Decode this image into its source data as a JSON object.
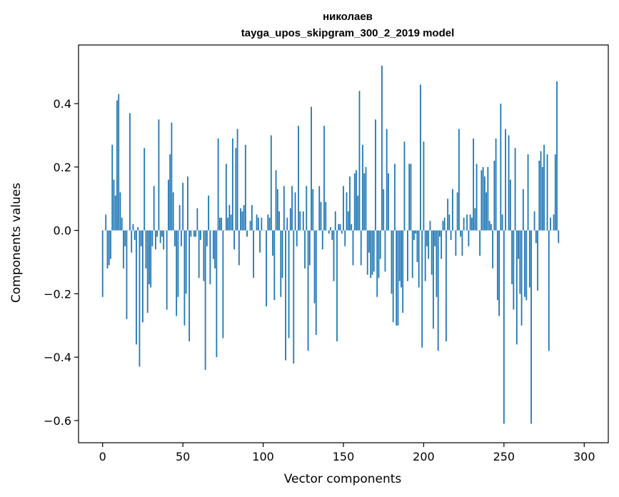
{
  "chart_data": {
    "type": "bar",
    "title": "николаев",
    "subtitle": "tayga_upos_skipgram_300_2_2019 model",
    "xlabel": "Vector components",
    "ylabel": "Components values",
    "xlim": [
      -15,
      315
    ],
    "ylim": [
      -0.67,
      0.585
    ],
    "xticks": [
      0,
      50,
      100,
      150,
      200,
      250,
      300
    ],
    "yticks": [
      -0.6,
      -0.4,
      -0.2,
      0.0,
      0.2,
      0.4
    ],
    "ytick_labels": [
      "−0.6",
      "−0.4",
      "−0.2",
      "0.0",
      "0.2",
      "0.4"
    ],
    "xtick_labels": [
      "0",
      "50",
      "100",
      "150",
      "200",
      "250",
      "300"
    ],
    "grid": false,
    "bar_color": "#1f77b4",
    "values": [
      -0.21,
      0.0,
      0.05,
      -0.12,
      -0.11,
      -0.09,
      0.27,
      0.16,
      0.11,
      0.41,
      0.43,
      0.12,
      0.04,
      -0.12,
      -0.05,
      -0.28,
      0.0,
      0.37,
      -0.07,
      0.02,
      -0.03,
      -0.36,
      0.01,
      -0.43,
      -0.05,
      -0.29,
      0.26,
      -0.12,
      -0.26,
      -0.17,
      -0.18,
      -0.05,
      0.14,
      -0.06,
      -0.02,
      0.35,
      -0.04,
      -0.02,
      -0.06,
      0.0,
      -0.25,
      0.16,
      0.24,
      0.34,
      0.12,
      -0.05,
      -0.27,
      -0.21,
      0.08,
      -0.05,
      0.15,
      -0.3,
      -0.2,
      0.17,
      -0.35,
      -0.02,
      0.0,
      -0.02,
      -0.02,
      0.07,
      -0.15,
      -0.03,
      0.0,
      -0.16,
      -0.44,
      -0.05,
      0.11,
      -0.17,
      0.0,
      -0.09,
      -0.12,
      -0.4,
      0.29,
      0.04,
      0.04,
      -0.34,
      0.0,
      0.21,
      0.04,
      0.08,
      0.05,
      0.29,
      -0.06,
      0.26,
      0.32,
      -0.11,
      0.07,
      0.06,
      0.08,
      0.27,
      -0.02,
      0.0,
      0.03,
      0.08,
      -0.15,
      0.0,
      0.05,
      0.04,
      -0.07,
      0.04,
      0.0,
      0.0,
      -0.24,
      0.05,
      0.04,
      0.3,
      -0.08,
      -0.22,
      0.19,
      0.13,
      0.06,
      -0.21,
      -0.15,
      0.14,
      -0.41,
      0.04,
      -0.34,
      0.07,
      0.14,
      -0.42,
      0.12,
      -0.05,
      0.33,
      0.06,
      0.0,
      0.06,
      -0.12,
      0.14,
      -0.38,
      -0.11,
      0.39,
      0.13,
      -0.23,
      -0.33,
      0.0,
      0.14,
      0.09,
      -0.06,
      0.33,
      0.09,
      0.0,
      -0.01,
      0.01,
      -0.03,
      -0.16,
      0.06,
      -0.35,
      0.02,
      0.02,
      -0.01,
      0.14,
      -0.05,
      0.12,
      0.06,
      0.17,
      0.02,
      -0.11,
      0.18,
      0.19,
      0.11,
      0.44,
      -0.11,
      0.27,
      0.18,
      0.2,
      -0.14,
      -0.07,
      -0.15,
      -0.14,
      -0.13,
      0.35,
      -0.21,
      -0.15,
      -0.09,
      0.52,
      0.13,
      -0.13,
      0.32,
      0.18,
      0.0,
      -0.2,
      -0.29,
      0.21,
      -0.3,
      -0.3,
      -0.16,
      -0.18,
      -0.26,
      0.28,
      0.0,
      -0.16,
      0.21,
      0.21,
      -0.15,
      -0.03,
      -0.01,
      -0.1,
      -0.18,
      0.46,
      -0.37,
      0.28,
      -0.16,
      -0.05,
      -0.09,
      0.03,
      -0.14,
      -0.31,
      -0.05,
      -0.21,
      -0.38,
      -0.02,
      -0.09,
      0.03,
      0.04,
      -0.35,
      0.1,
      0.05,
      -0.03,
      0.13,
      0.0,
      -0.08,
      0.12,
      0.32,
      -0.02,
      -0.08,
      0.04,
      0.0,
      0.05,
      -0.05,
      0.05,
      0.04,
      0.29,
      0.07,
      0.21,
      0.0,
      -0.08,
      0.19,
      0.2,
      0.17,
      0.12,
      0.2,
      0.03,
      0.02,
      -0.12,
      0.22,
      0.29,
      -0.22,
      -0.27,
      0.4,
      0.05,
      -0.61,
      0.32,
      0.0,
      0.3,
      0.16,
      -0.17,
      -0.25,
      0.26,
      -0.36,
      -0.09,
      -0.2,
      -0.3,
      0.13,
      -0.21,
      -0.22,
      0.24,
      -0.18,
      -0.61,
      0.0,
      0.06,
      -0.04,
      -0.19,
      0.22,
      0.25,
      0.2,
      0.27,
      0.0,
      0.24,
      -0.38,
      0.04,
      0.0,
      0.05,
      0.24,
      0.47,
      -0.04
    ]
  }
}
